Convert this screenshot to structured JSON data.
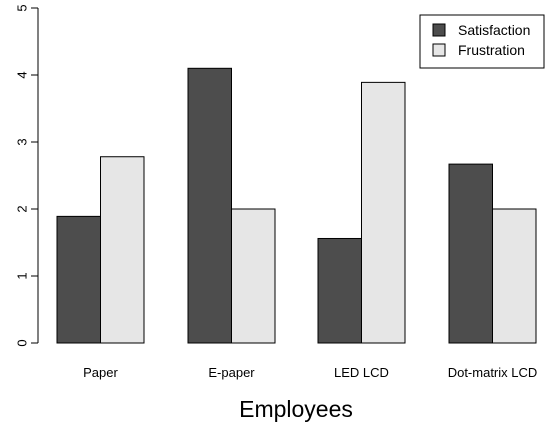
{
  "chart_data": {
    "type": "bar",
    "title": "",
    "xlabel": "Employees",
    "ylabel": "",
    "categories": [
      "Paper",
      "E-paper",
      "LED LCD",
      "Dot-matrix LCD"
    ],
    "series": [
      {
        "name": "Satisfaction",
        "values": [
          1.89,
          4.1,
          1.56,
          2.67
        ],
        "color": "#4d4d4d"
      },
      {
        "name": "Frustration",
        "values": [
          2.78,
          2.0,
          3.89,
          2.0
        ],
        "color": "#e6e6e6"
      }
    ],
    "ylim": [
      0,
      5
    ],
    "yticks": [
      "0",
      "1",
      "2",
      "3",
      "4",
      "5"
    ],
    "grid": false,
    "legend_position": "top-right"
  }
}
